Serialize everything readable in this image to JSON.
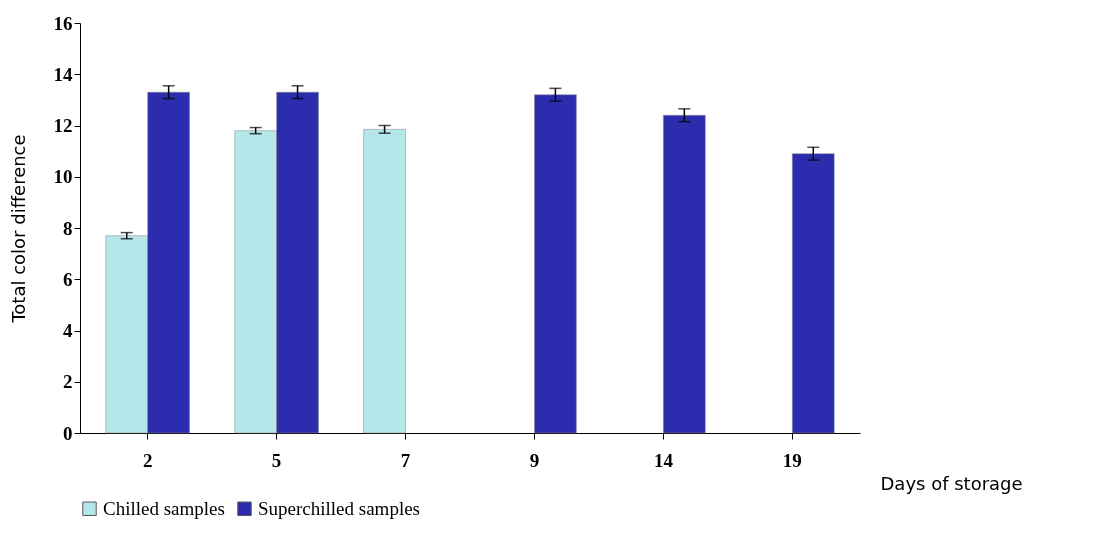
{
  "chart_data": {
    "type": "bar",
    "xlabel": "Days of storage",
    "ylabel": "Total color difference",
    "categories": [
      "2",
      "5",
      "7",
      "9",
      "14",
      "19"
    ],
    "series": [
      {
        "name": "Chilled samples",
        "color": "#b4e6ea",
        "values": [
          7.7,
          11.8,
          11.85,
          null,
          null,
          null
        ],
        "errors": [
          0.12,
          0.12,
          0.15,
          null,
          null,
          null
        ]
      },
      {
        "name": "Superchilled samples",
        "color": "#2c2cae",
        "values": [
          13.3,
          13.3,
          null,
          13.2,
          12.4,
          10.9
        ],
        "errors": [
          0.25,
          0.25,
          null,
          0.25,
          0.25,
          0.25
        ]
      }
    ],
    "ylim": [
      0,
      16
    ],
    "yticks": [
      0,
      2,
      4,
      6,
      8,
      10,
      12,
      14,
      16
    ],
    "grid": false,
    "legend": "bottom"
  }
}
